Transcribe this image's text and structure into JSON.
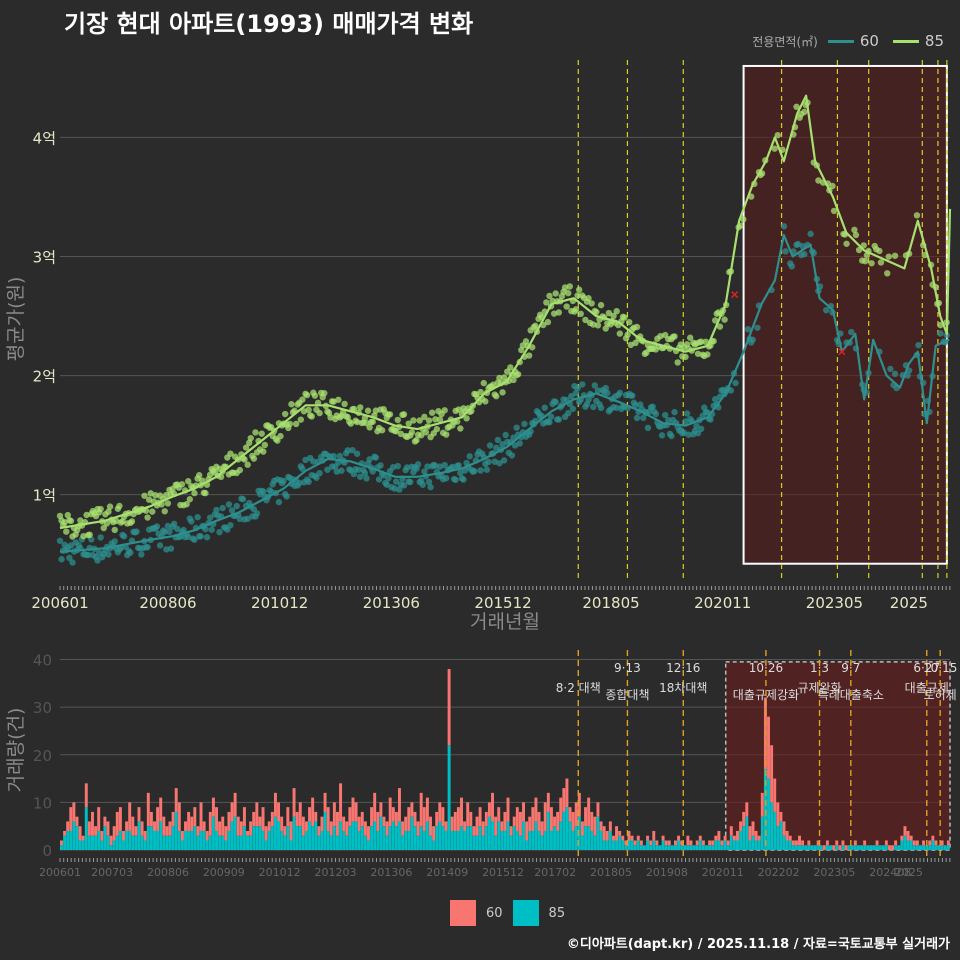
{
  "title": "기장 현대 아파트(1993) 매매가격 변화",
  "legend": {
    "title": "전용면적(㎡)",
    "items": [
      {
        "name": "60",
        "color": "#2e8f8f"
      },
      {
        "name": "85",
        "color": "#a8e070"
      }
    ]
  },
  "bar_legend": {
    "items": [
      {
        "name": "60",
        "color": "#f87670"
      },
      {
        "name": "85",
        "color": "#00bfc4"
      }
    ]
  },
  "footer": "©디아파트(dapt.kr) / 2025.11.18 / 자료=국토교통부 실거래가",
  "chart_data": [
    {
      "type": "line",
      "title": "기장 현대 아파트(1993) 매매가격 변화",
      "xlabel": "거래년월",
      "ylabel": "평균가(원)",
      "x_ticks": [
        "200601",
        "200806",
        "201012",
        "201306",
        "201512",
        "201805",
        "202011",
        "202305",
        "2025"
      ],
      "y_ticks": [
        {
          "value": 1,
          "label": "1억"
        },
        {
          "value": 2,
          "label": "2억"
        },
        {
          "value": 3,
          "label": "3억"
        },
        {
          "value": 4,
          "label": "4억"
        }
      ],
      "ylim": [
        0.3,
        4.65
      ],
      "xlim": [
        2006.0,
        2025.92
      ],
      "series": [
        {
          "name": "60",
          "color": "#2e8f8f",
          "points": [
            [
              2006.0,
              0.52
            ],
            [
              2007.0,
              0.55
            ],
            [
              2008.0,
              0.62
            ],
            [
              2008.5,
              0.65
            ],
            [
              2009.0,
              0.7
            ],
            [
              2009.5,
              0.78
            ],
            [
              2010.0,
              0.85
            ],
            [
              2010.5,
              0.95
            ],
            [
              2011.0,
              1.05
            ],
            [
              2011.5,
              1.2
            ],
            [
              2012.0,
              1.3
            ],
            [
              2012.5,
              1.28
            ],
            [
              2013.0,
              1.22
            ],
            [
              2013.5,
              1.15
            ],
            [
              2014.0,
              1.15
            ],
            [
              2014.5,
              1.18
            ],
            [
              2015.0,
              1.22
            ],
            [
              2015.5,
              1.3
            ],
            [
              2016.0,
              1.4
            ],
            [
              2016.5,
              1.55
            ],
            [
              2017.0,
              1.7
            ],
            [
              2017.5,
              1.8
            ],
            [
              2018.0,
              1.85
            ],
            [
              2018.5,
              1.78
            ],
            [
              2019.0,
              1.7
            ],
            [
              2019.5,
              1.6
            ],
            [
              2020.0,
              1.58
            ],
            [
              2020.5,
              1.65
            ],
            [
              2020.9,
              1.85
            ],
            [
              2021.3,
              2.2
            ],
            [
              2021.7,
              2.6
            ],
            [
              2022.0,
              2.8
            ],
            [
              2022.2,
              3.18
            ],
            [
              2022.4,
              3.0
            ],
            [
              2022.8,
              3.1
            ],
            [
              2023.0,
              2.65
            ],
            [
              2023.3,
              2.55
            ],
            [
              2023.5,
              2.2
            ],
            [
              2023.8,
              2.35
            ],
            [
              2024.0,
              1.8
            ],
            [
              2024.2,
              2.3
            ],
            [
              2024.5,
              2.0
            ],
            [
              2024.8,
              1.9
            ],
            [
              2025.0,
              2.1
            ],
            [
              2025.2,
              2.2
            ],
            [
              2025.4,
              1.6
            ],
            [
              2025.6,
              2.25
            ],
            [
              2025.9,
              2.3
            ]
          ]
        },
        {
          "name": "85",
          "color": "#a8e070",
          "points": [
            [
              2006.0,
              0.72
            ],
            [
              2007.0,
              0.78
            ],
            [
              2008.0,
              0.9
            ],
            [
              2008.5,
              0.98
            ],
            [
              2009.0,
              1.05
            ],
            [
              2009.5,
              1.15
            ],
            [
              2010.0,
              1.3
            ],
            [
              2010.5,
              1.45
            ],
            [
              2011.0,
              1.6
            ],
            [
              2011.5,
              1.75
            ],
            [
              2012.0,
              1.75
            ],
            [
              2012.5,
              1.7
            ],
            [
              2013.0,
              1.65
            ],
            [
              2013.5,
              1.58
            ],
            [
              2014.0,
              1.55
            ],
            [
              2014.5,
              1.6
            ],
            [
              2015.0,
              1.65
            ],
            [
              2015.5,
              1.85
            ],
            [
              2016.0,
              1.95
            ],
            [
              2016.5,
              2.25
            ],
            [
              2017.0,
              2.6
            ],
            [
              2017.5,
              2.65
            ],
            [
              2018.0,
              2.5
            ],
            [
              2018.5,
              2.45
            ],
            [
              2019.0,
              2.3
            ],
            [
              2019.5,
              2.25
            ],
            [
              2020.0,
              2.2
            ],
            [
              2020.5,
              2.25
            ],
            [
              2020.9,
              2.6
            ],
            [
              2021.2,
              3.3
            ],
            [
              2021.5,
              3.6
            ],
            [
              2021.8,
              3.8
            ],
            [
              2022.0,
              4.0
            ],
            [
              2022.2,
              3.8
            ],
            [
              2022.5,
              4.2
            ],
            [
              2022.7,
              4.35
            ],
            [
              2022.9,
              3.8
            ],
            [
              2023.3,
              3.5
            ],
            [
              2023.6,
              3.2
            ],
            [
              2024.0,
              3.05
            ],
            [
              2024.3,
              3.0
            ],
            [
              2024.6,
              2.95
            ],
            [
              2024.9,
              2.9
            ],
            [
              2025.2,
              3.3
            ],
            [
              2025.5,
              2.9
            ],
            [
              2025.7,
              2.5
            ],
            [
              2025.85,
              2.35
            ],
            [
              2025.92,
              3.4
            ]
          ]
        }
      ],
      "highlight_range": [
        2021.3,
        2025.85
      ]
    },
    {
      "type": "bar",
      "xlabel": "",
      "ylabel": "거래량(건)",
      "x_ticks": [
        "200601",
        "200703",
        "200806",
        "200909",
        "201012",
        "201203",
        "201306",
        "201409",
        "201512",
        "201702",
        "201805",
        "201908",
        "202011",
        "202202",
        "202305",
        "202408",
        "2025"
      ],
      "y_ticks": [
        0,
        10,
        20,
        30,
        40
      ],
      "ylim": [
        0,
        42
      ],
      "xlim": [
        2006.0,
        2025.92
      ],
      "series": [
        {
          "name": "60",
          "color": "#f87670"
        },
        {
          "name": "85",
          "color": "#00bfc4"
        }
      ],
      "monthly_totals": [
        2,
        4,
        6,
        9,
        10,
        7,
        5,
        3,
        14,
        6,
        8,
        5,
        9,
        4,
        7,
        6,
        3,
        5,
        8,
        9,
        4,
        6,
        10,
        7,
        5,
        9,
        6,
        4,
        12,
        8,
        6,
        9,
        11,
        7,
        5,
        6,
        8,
        13,
        10,
        4,
        6,
        8,
        7,
        9,
        5,
        10,
        6,
        4,
        8,
        11,
        9,
        6,
        7,
        5,
        8,
        10,
        12,
        7,
        6,
        9,
        4,
        6,
        8,
        10,
        7,
        9,
        5,
        6,
        8,
        12,
        10,
        7,
        5,
        9,
        6,
        13,
        8,
        10,
        7,
        6,
        9,
        11,
        8,
        5,
        7,
        12,
        9,
        6,
        10,
        8,
        14,
        7,
        6,
        9,
        11,
        10,
        7,
        8,
        6,
        5,
        9,
        12,
        8,
        10,
        7,
        6,
        11,
        9,
        8,
        13,
        6,
        7,
        9,
        10,
        8,
        6,
        12,
        9,
        11,
        7,
        5,
        8,
        10,
        9,
        6,
        38,
        7,
        8,
        9,
        11,
        6,
        10,
        8,
        5,
        7,
        9,
        6,
        8,
        10,
        12,
        7,
        9,
        6,
        8,
        11,
        5,
        7,
        9,
        8,
        10,
        6,
        7,
        9,
        11,
        8,
        6,
        10,
        12,
        9,
        7,
        8,
        11,
        13,
        15,
        9,
        8,
        10,
        12,
        6,
        9,
        11,
        8,
        7,
        10,
        6,
        5,
        4,
        6,
        3,
        5,
        4,
        3,
        2,
        4,
        3,
        2,
        3,
        2,
        1,
        3,
        2,
        4,
        2,
        1,
        3,
        2,
        2,
        1,
        2,
        3,
        2,
        1,
        3,
        2,
        1,
        2,
        3,
        2,
        1,
        2,
        2,
        3,
        4,
        2,
        3,
        2,
        5,
        3,
        4,
        6,
        8,
        10,
        5,
        6,
        4,
        3,
        12,
        32,
        28,
        22,
        15,
        10,
        8,
        6,
        4,
        3,
        2,
        2,
        3,
        2,
        1,
        2,
        1,
        1,
        2,
        1,
        1,
        2,
        1,
        1,
        2,
        1,
        2,
        1,
        1,
        1,
        2,
        1,
        1,
        2,
        1,
        1,
        1,
        2,
        1,
        1,
        2,
        1,
        1,
        2,
        1,
        3,
        5,
        4,
        3,
        2,
        2,
        1,
        2,
        1,
        2,
        3,
        2,
        1,
        2,
        1,
        2
      ],
      "share_85": 0.55,
      "annotations": [
        {
          "x": 2017.6,
          "date": "",
          "label": "8·2 대책"
        },
        {
          "x": 2018.7,
          "date": "9·13",
          "label": "종합대책"
        },
        {
          "x": 2019.95,
          "date": "12·16",
          "label": "18차대책"
        },
        {
          "x": 2021.8,
          "date": "10·26",
          "label": "대출규제강화"
        },
        {
          "x": 2023.0,
          "date": "1·3",
          "label": "규제완화"
        },
        {
          "x": 2023.7,
          "date": "9·7",
          "label": "특례대출축소"
        },
        {
          "x": 2025.4,
          "date": "6·27",
          "label": "대출규제"
        },
        {
          "x": 2025.7,
          "date": "10·15",
          "label": "토허제"
        }
      ],
      "highlight_range": [
        2020.9,
        2025.92
      ]
    }
  ]
}
